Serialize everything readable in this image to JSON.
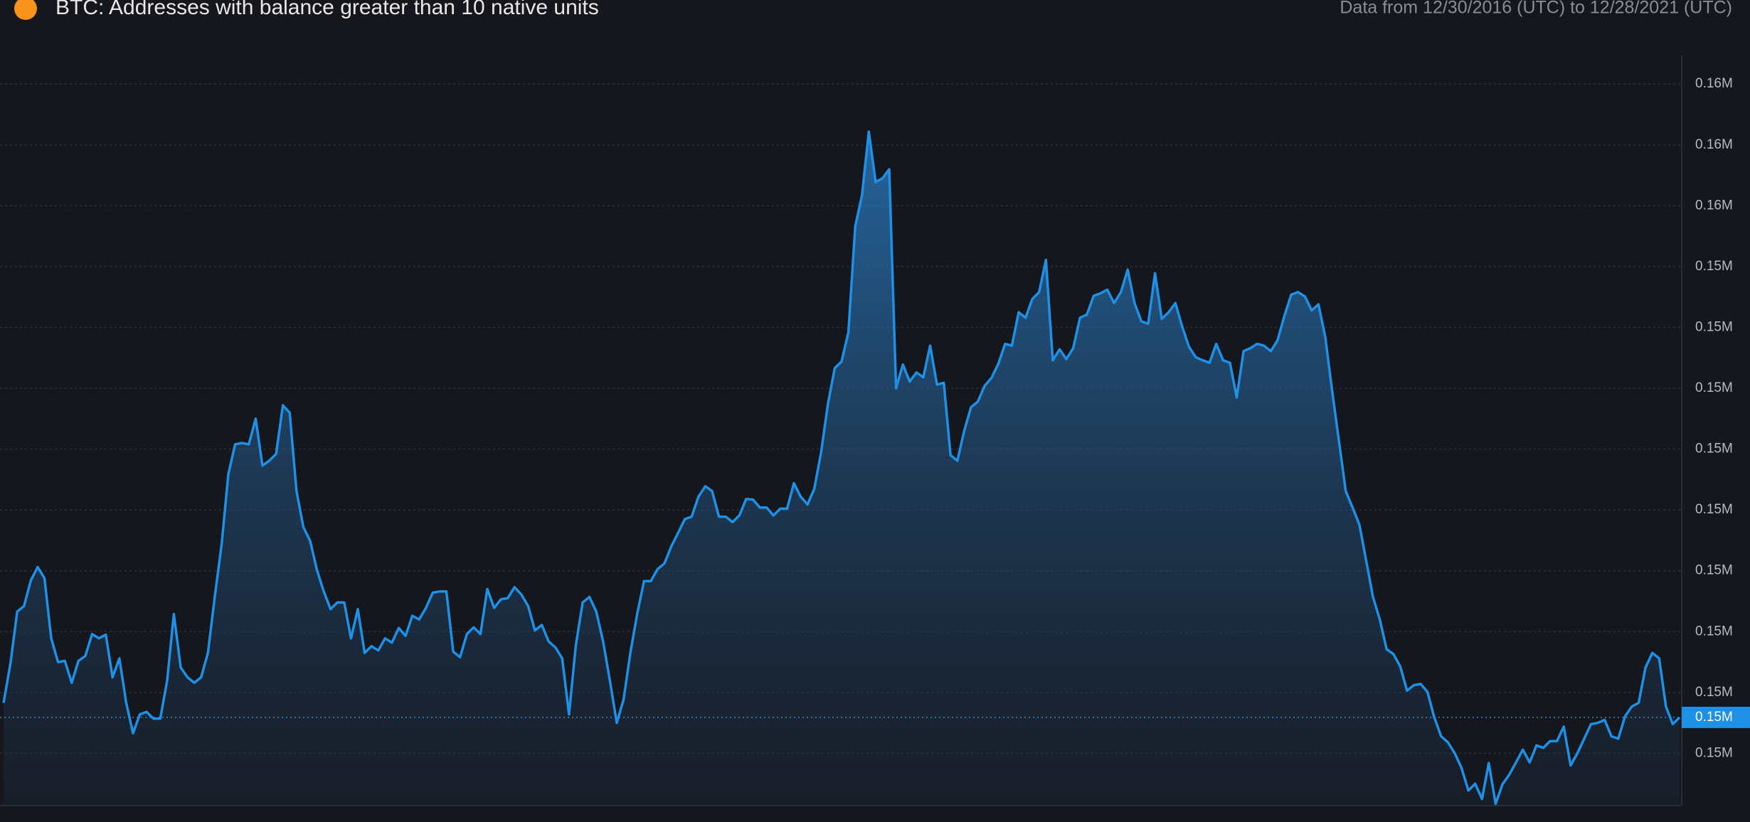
{
  "chart_data": {
    "type": "area",
    "title": "BTC: Addresses with balance greater than 10 native units",
    "subtitle": "Data from 12/30/2016 (UTC) to 12/28/2021 (UTC)",
    "color": "#1e90e6",
    "grid": true,
    "last_value_label": "0.15M",
    "ylim": [
      146140,
      158470
    ],
    "yticks": [
      {
        "value": 158000,
        "label": "0.16M"
      },
      {
        "value": 157000,
        "label": "0.16M"
      },
      {
        "value": 156000,
        "label": "0.16M"
      },
      {
        "value": 155000,
        "label": "0.15M"
      },
      {
        "value": 154000,
        "label": "0.15M"
      },
      {
        "value": 153000,
        "label": "0.15M"
      },
      {
        "value": 152000,
        "label": "0.15M"
      },
      {
        "value": 151000,
        "label": "0.15M"
      },
      {
        "value": 150000,
        "label": "0.15M"
      },
      {
        "value": 149000,
        "label": "0.15M"
      },
      {
        "value": 148000,
        "label": "0.15M"
      },
      {
        "value": 147000,
        "label": "0.15M"
      }
    ],
    "values": [
      147830,
      148470,
      149330,
      149420,
      149840,
      150060,
      149880,
      148890,
      148500,
      148520,
      148160,
      148520,
      148600,
      148960,
      148890,
      148950,
      148250,
      148560,
      147830,
      147330,
      147640,
      147680,
      147570,
      147570,
      148190,
      149290,
      148410,
      148250,
      148160,
      148250,
      148650,
      149570,
      150430,
      151590,
      152080,
      152100,
      152080,
      152500,
      151730,
      151810,
      151920,
      152720,
      152600,
      151310,
      150720,
      150490,
      150010,
      149660,
      149370,
      149480,
      149480,
      148890,
      149370,
      148650,
      148760,
      148690,
      148890,
      148820,
      149060,
      148930,
      149260,
      149200,
      149390,
      149640,
      149660,
      149660,
      148670,
      148580,
      148960,
      149070,
      148960,
      149700,
      149390,
      149530,
      149550,
      149730,
      149610,
      149420,
      149020,
      149110,
      148840,
      148740,
      148560,
      147640,
      148780,
      149480,
      149570,
      149330,
      148840,
      148190,
      147500,
      147880,
      148650,
      149290,
      149830,
      149830,
      150030,
      150120,
      150400,
      150620,
      150850,
      150890,
      151220,
      151390,
      151310,
      150890,
      150890,
      150800,
      150910,
      151180,
      151170,
      151040,
      151040,
      150910,
      151020,
      151020,
      151440,
      151220,
      151090,
      151350,
      151950,
      152740,
      153330,
      153440,
      153920,
      155660,
      156170,
      157220,
      156390,
      156450,
      156600,
      153000,
      153390,
      153110,
      153260,
      153180,
      153700,
      153060,
      153090,
      151900,
      151810,
      152300,
      152690,
      152780,
      153040,
      153170,
      153400,
      153730,
      153700,
      154250,
      154160,
      154470,
      154580,
      155110,
      153460,
      153640,
      153480,
      153660,
      154160,
      154210,
      154520,
      154560,
      154620,
      154400,
      154580,
      154950,
      154400,
      154100,
      154060,
      154890,
      154140,
      154250,
      154400,
      154010,
      153680,
      153510,
      153460,
      153420,
      153730,
      153460,
      153420,
      152850,
      153610,
      153660,
      153730,
      153700,
      153610,
      153790,
      154190,
      154540,
      154580,
      154510,
      154280,
      154380,
      153840,
      152960,
      152140,
      151310,
      151040,
      150760,
      150170,
      149570,
      149200,
      148710,
      148630,
      148430,
      148030,
      148120,
      148140,
      148010,
      147590,
      147280,
      147180,
      147000,
      146760,
      146390,
      146500,
      146250,
      146840,
      146170,
      146490,
      146650,
      146850,
      147060,
      146850,
      147130,
      147090,
      147200,
      147200,
      147440,
      146800,
      147000,
      147240,
      147480,
      147500,
      147550,
      147280,
      147240,
      147610,
      147770,
      147830,
      148410,
      148650,
      148560,
      147770,
      147480,
      147590
    ]
  }
}
